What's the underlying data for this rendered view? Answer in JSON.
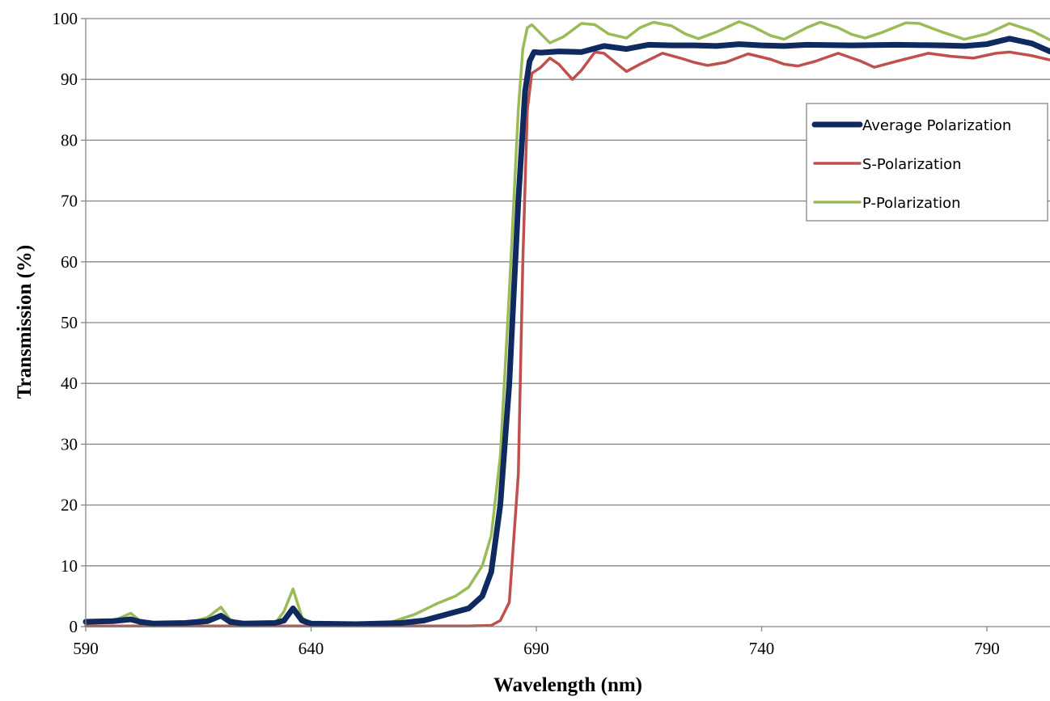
{
  "chart_data": {
    "type": "line",
    "xlabel": "Wavelength (nm)",
    "ylabel": "Transmission (%)",
    "xlim": [
      590,
      804
    ],
    "ylim": [
      0,
      100
    ],
    "x_ticks": [
      590,
      640,
      690,
      740,
      790
    ],
    "y_ticks": [
      0,
      10,
      20,
      30,
      40,
      50,
      60,
      70,
      80,
      90,
      100
    ],
    "grid": "horizontal",
    "legend_position": "right",
    "series": [
      {
        "name": "Average Polarization",
        "color": "#0f2a5f",
        "points": [
          [
            590,
            0.8
          ],
          [
            596,
            0.9
          ],
          [
            600,
            1.2
          ],
          [
            602,
            0.8
          ],
          [
            605,
            0.5
          ],
          [
            612,
            0.6
          ],
          [
            617,
            0.9
          ],
          [
            620,
            1.8
          ],
          [
            622,
            0.8
          ],
          [
            625,
            0.5
          ],
          [
            632,
            0.6
          ],
          [
            634,
            1.0
          ],
          [
            636,
            3.0
          ],
          [
            638,
            1.0
          ],
          [
            640,
            0.5
          ],
          [
            650,
            0.4
          ],
          [
            660,
            0.6
          ],
          [
            665,
            1.0
          ],
          [
            670,
            2.0
          ],
          [
            675,
            3.0
          ],
          [
            678,
            5.0
          ],
          [
            680,
            9.0
          ],
          [
            682,
            20.0
          ],
          [
            684,
            40.0
          ],
          [
            686,
            70.0
          ],
          [
            687.5,
            88.0
          ],
          [
            688.5,
            93.0
          ],
          [
            689.5,
            94.5
          ],
          [
            691,
            94.4
          ],
          [
            695,
            94.6
          ],
          [
            700,
            94.5
          ],
          [
            705,
            95.5
          ],
          [
            710,
            95.0
          ],
          [
            715,
            95.7
          ],
          [
            720,
            95.6
          ],
          [
            725,
            95.6
          ],
          [
            730,
            95.5
          ],
          [
            735,
            95.8
          ],
          [
            740,
            95.6
          ],
          [
            745,
            95.5
          ],
          [
            750,
            95.7
          ],
          [
            760,
            95.6
          ],
          [
            770,
            95.7
          ],
          [
            780,
            95.6
          ],
          [
            785,
            95.5
          ],
          [
            790,
            95.8
          ],
          [
            795,
            96.7
          ],
          [
            800,
            95.9
          ],
          [
            804,
            94.6
          ]
        ]
      },
      {
        "name": "S-Polarization",
        "color": "#c0504d",
        "points": [
          [
            590,
            0.1
          ],
          [
            600,
            0.1
          ],
          [
            620,
            0.1
          ],
          [
            640,
            0.1
          ],
          [
            660,
            0.1
          ],
          [
            675,
            0.1
          ],
          [
            680,
            0.2
          ],
          [
            682,
            1.0
          ],
          [
            684,
            4.0
          ],
          [
            686,
            25.0
          ],
          [
            687,
            60.0
          ],
          [
            688,
            85.0
          ],
          [
            689,
            91.0
          ],
          [
            691,
            92.0
          ],
          [
            693,
            93.5
          ],
          [
            695,
            92.5
          ],
          [
            698,
            90.0
          ],
          [
            700,
            91.5
          ],
          [
            703,
            94.5
          ],
          [
            705,
            94.3
          ],
          [
            708,
            92.5
          ],
          [
            710,
            91.3
          ],
          [
            713,
            92.5
          ],
          [
            718,
            94.3
          ],
          [
            722,
            93.5
          ],
          [
            725,
            92.8
          ],
          [
            728,
            92.3
          ],
          [
            732,
            92.8
          ],
          [
            737,
            94.2
          ],
          [
            742,
            93.3
          ],
          [
            745,
            92.5
          ],
          [
            748,
            92.2
          ],
          [
            752,
            93.0
          ],
          [
            757,
            94.3
          ],
          [
            762,
            93.0
          ],
          [
            765,
            92.0
          ],
          [
            770,
            93.0
          ],
          [
            777,
            94.3
          ],
          [
            782,
            93.8
          ],
          [
            787,
            93.5
          ],
          [
            792,
            94.3
          ],
          [
            795,
            94.5
          ],
          [
            800,
            93.9
          ],
          [
            804,
            93.2
          ]
        ]
      },
      {
        "name": "P-Polarization",
        "color": "#9bbb59",
        "points": [
          [
            590,
            0.4
          ],
          [
            596,
            0.9
          ],
          [
            600,
            2.2
          ],
          [
            602,
            1.0
          ],
          [
            605,
            0.3
          ],
          [
            612,
            0.4
          ],
          [
            617,
            1.5
          ],
          [
            620,
            3.2
          ],
          [
            622,
            1.2
          ],
          [
            625,
            0.4
          ],
          [
            632,
            0.5
          ],
          [
            634,
            2.5
          ],
          [
            636,
            6.2
          ],
          [
            638,
            1.5
          ],
          [
            640,
            0.5
          ],
          [
            650,
            0.4
          ],
          [
            658,
            0.8
          ],
          [
            663,
            2.0
          ],
          [
            668,
            3.8
          ],
          [
            672,
            5.0
          ],
          [
            675,
            6.5
          ],
          [
            678,
            10.0
          ],
          [
            680,
            15.0
          ],
          [
            682,
            28.0
          ],
          [
            684,
            55.0
          ],
          [
            686,
            85.0
          ],
          [
            687,
            95.0
          ],
          [
            688,
            98.5
          ],
          [
            689,
            99.0
          ],
          [
            691,
            97.5
          ],
          [
            693,
            96.0
          ],
          [
            696,
            97.0
          ],
          [
            700,
            99.2
          ],
          [
            703,
            99.0
          ],
          [
            706,
            97.5
          ],
          [
            710,
            96.8
          ],
          [
            713,
            98.5
          ],
          [
            716,
            99.4
          ],
          [
            720,
            98.8
          ],
          [
            723,
            97.5
          ],
          [
            726,
            96.7
          ],
          [
            730,
            97.8
          ],
          [
            735,
            99.5
          ],
          [
            738,
            98.7
          ],
          [
            742,
            97.2
          ],
          [
            745,
            96.6
          ],
          [
            750,
            98.5
          ],
          [
            753,
            99.4
          ],
          [
            757,
            98.5
          ],
          [
            760,
            97.4
          ],
          [
            763,
            96.8
          ],
          [
            767,
            97.8
          ],
          [
            772,
            99.3
          ],
          [
            775,
            99.2
          ],
          [
            780,
            97.8
          ],
          [
            785,
            96.6
          ],
          [
            790,
            97.5
          ],
          [
            795,
            99.2
          ],
          [
            800,
            98.0
          ],
          [
            804,
            96.5
          ]
        ]
      }
    ]
  }
}
